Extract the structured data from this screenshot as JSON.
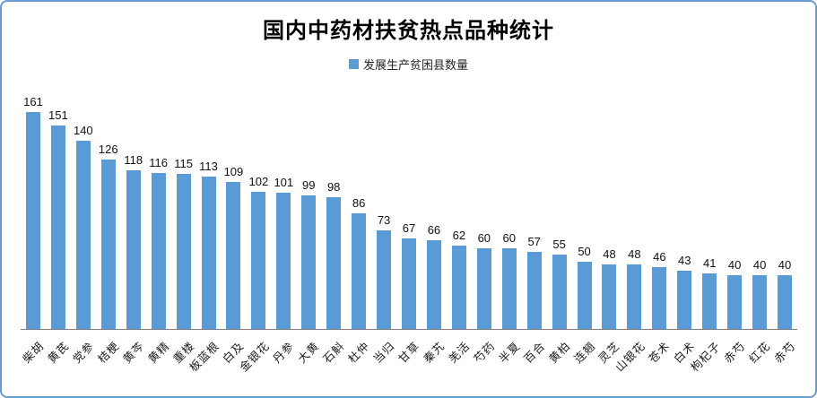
{
  "chart_data": {
    "type": "bar",
    "title": "国内中药材扶贫热点品种统计",
    "legend": "发展生产贫困县数量",
    "legend_position": "top",
    "grid": false,
    "value_labels": true,
    "categories": [
      "柴胡",
      "黄芪",
      "党参",
      "桔梗",
      "黄芩",
      "黄精",
      "重楼",
      "板蓝根",
      "白及",
      "金银花",
      "丹参",
      "大黄",
      "石斛",
      "杜仲",
      "当归",
      "甘草",
      "秦艽",
      "羌活",
      "芍药",
      "半夏",
      "百合",
      "黄柏",
      "连翘",
      "灵芝",
      "山银花",
      "苍术",
      "白术",
      "枸杞子",
      "赤芍",
      "红花",
      "赤芍"
    ],
    "values": [
      161,
      151,
      140,
      126,
      118,
      116,
      115,
      113,
      109,
      102,
      101,
      99,
      98,
      86,
      73,
      67,
      66,
      62,
      60,
      60,
      57,
      55,
      50,
      48,
      48,
      46,
      43,
      41,
      40,
      40,
      40
    ],
    "xlabel": "",
    "ylabel": "",
    "ylim": [
      0,
      170
    ],
    "bar_color": "#5b9bd5",
    "axis_color": "#808080",
    "border_color": "#6a9cd3"
  }
}
